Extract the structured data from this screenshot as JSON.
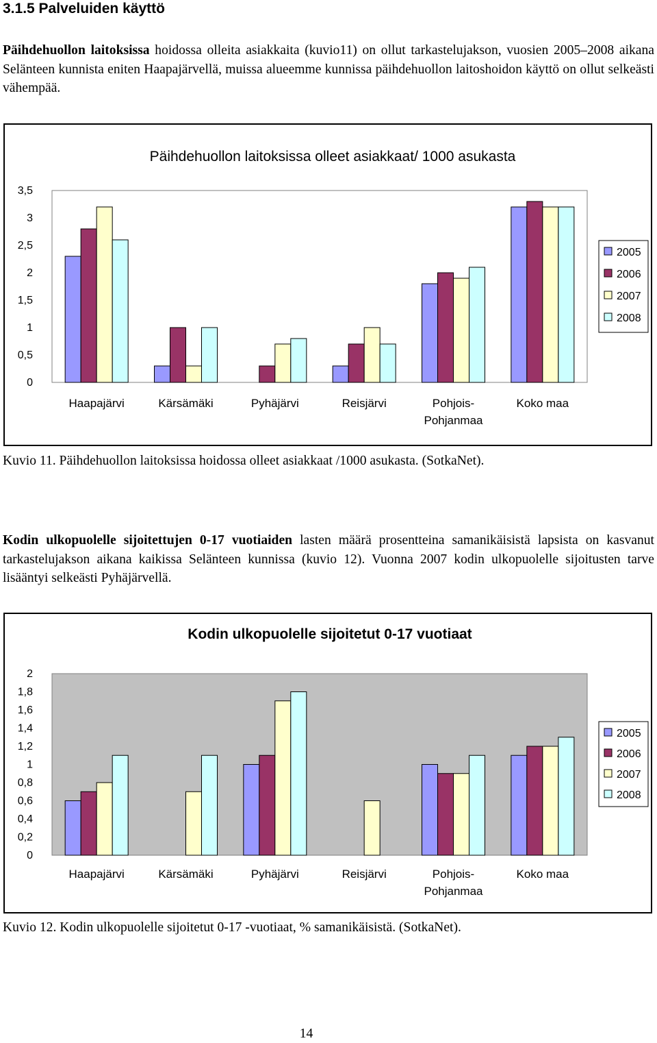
{
  "section": {
    "heading": "3.1.5 Palveluiden käyttö"
  },
  "paragraph1": {
    "lead": "Päihdehuollon laitoksissa",
    "rest": " hoidossa olleita asiakkaita (kuvio11) on ollut tarkastelujakson, vuosien 2005–2008 aikana Selänteen kunnista eniten Haapajärvellä, muissa alueemme kunnissa päihdehuollon laitoshoidon käyttö on ollut selkeästi vähempää."
  },
  "caption1": "Kuvio 11. Päihdehuollon laitoksissa hoidossa olleet asiakkaat /1000 asukasta. (SotkaNet).",
  "paragraph2": {
    "lead": "Kodin ulkopuolelle sijoitettujen 0-17 vuotiaiden",
    "rest": " lasten määrä prosentteina samanikäisistä lapsista on kasvanut tarkastelujakson aikana kaikissa Selänteen kunnissa (kuvio 12). Vuonna 2007 kodin ulkopuolelle sijoitusten tarve lisääntyi selkeästi Pyhäjärvellä."
  },
  "caption2": "Kuvio 12. Kodin ulkopuolelle sijoitetut 0-17 -vuotiaat, % samanikäisistä. (SotkaNet).",
  "page_number": "14",
  "chart_data": [
    {
      "type": "bar",
      "title": "Päihdehuollon laitoksissa olleet asiakkaat/ 1000 asukasta",
      "categories": [
        [
          "Haapajärvi"
        ],
        [
          "Kärsämäki"
        ],
        [
          "Pyhäjärvi"
        ],
        [
          "Reisjärvi"
        ],
        [
          "Pohjois-",
          "Pohjanmaa"
        ],
        [
          "Koko maa"
        ]
      ],
      "series": [
        {
          "name": "2005",
          "values": [
            2.3,
            0.3,
            0,
            0.3,
            1.8,
            3.2
          ]
        },
        {
          "name": "2006",
          "values": [
            2.8,
            1.0,
            0.3,
            0.7,
            2.0,
            3.3
          ]
        },
        {
          "name": "2007",
          "values": [
            3.2,
            0.3,
            0.7,
            1.0,
            1.9,
            3.2
          ]
        },
        {
          "name": "2008",
          "values": [
            2.6,
            1.0,
            0.8,
            0.7,
            2.1,
            3.2
          ]
        }
      ],
      "ylim": [
        0,
        3.5
      ],
      "yticks": [
        "0",
        "0,5",
        "1",
        "1,5",
        "2",
        "2,5",
        "3",
        "3,5"
      ],
      "ytick_values": [
        0,
        0.5,
        1,
        1.5,
        2,
        2.5,
        3,
        3.5
      ],
      "plot_background": "#ffffff",
      "grid": false,
      "legend": "right",
      "colors": [
        "#9999ff",
        "#993366",
        "#ffffcc",
        "#ccffff"
      ]
    },
    {
      "type": "bar",
      "title": "Kodin ulkopuolelle sijoitetut 0-17 vuotiaat",
      "categories": [
        [
          "Haapajärvi"
        ],
        [
          "Kärsämäki"
        ],
        [
          "Pyhäjärvi"
        ],
        [
          "Reisjärvi"
        ],
        [
          "Pohjois-",
          "Pohjanmaa"
        ],
        [
          "Koko maa"
        ]
      ],
      "series": [
        {
          "name": "2005",
          "values": [
            0.6,
            0,
            1.0,
            0,
            1.0,
            1.1
          ]
        },
        {
          "name": "2006",
          "values": [
            0.7,
            0,
            1.1,
            0,
            0.9,
            1.2
          ]
        },
        {
          "name": "2007",
          "values": [
            0.8,
            0.7,
            1.7,
            0.6,
            0.9,
            1.2
          ]
        },
        {
          "name": "2008",
          "values": [
            1.1,
            1.1,
            1.8,
            0,
            1.1,
            1.3
          ]
        }
      ],
      "ylim": [
        0,
        2
      ],
      "yticks": [
        "0",
        "0,2",
        "0,4",
        "0,6",
        "0,8",
        "1",
        "1,2",
        "1,4",
        "1,6",
        "1,8",
        "2"
      ],
      "ytick_values": [
        0,
        0.2,
        0.4,
        0.6,
        0.8,
        1.0,
        1.2,
        1.4,
        1.6,
        1.8,
        2.0
      ],
      "plot_background": "#c0c0c0",
      "grid": false,
      "legend": "right",
      "colors": [
        "#9999ff",
        "#993366",
        "#ffffcc",
        "#ccffff"
      ]
    }
  ]
}
